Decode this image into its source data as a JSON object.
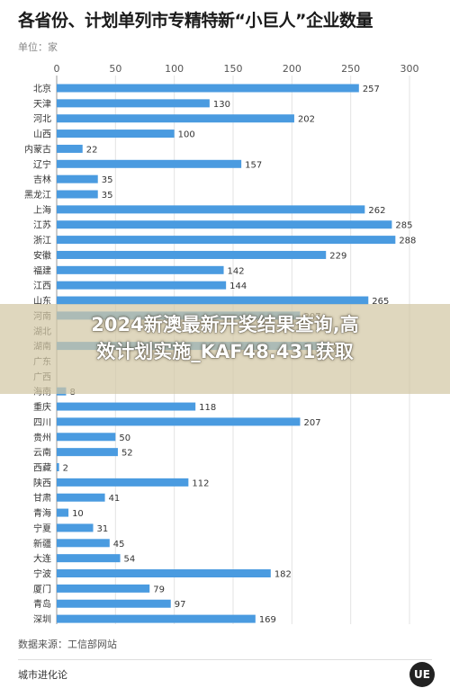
{
  "header": {
    "title": "各省份、计划单列市专精特新“小巨人”企业数量",
    "unit": "单位：家"
  },
  "chart_data": {
    "type": "bar",
    "orientation": "horizontal",
    "title": "各省份、计划单列市专精特新“小巨人”企业数量",
    "unit": "单位：家",
    "xlim": [
      0,
      300
    ],
    "x_ticks": [
      "0",
      "50",
      "100",
      "150",
      "200",
      "250",
      "300"
    ],
    "grid": true,
    "bar_color": "#4a9be0",
    "categories": [
      "北京",
      "天津",
      "河北",
      "山西",
      "内蒙古",
      "辽宁",
      "吉林",
      "黑龙江",
      "上海",
      "江苏",
      "浙江",
      "安徽",
      "福建",
      "江西",
      "山东",
      "河南",
      "湖北",
      "湖南",
      "广东",
      "广西",
      "海南",
      "重庆",
      "四川",
      "贵州",
      "云南",
      "西藏",
      "陕西",
      "甘肃",
      "青海",
      "宁夏",
      "新疆",
      "大连",
      "宁波",
      "厦门",
      "青岛",
      "深圳"
    ],
    "values": [
      257,
      130,
      202,
      100,
      22,
      157,
      35,
      35,
      262,
      285,
      288,
      229,
      142,
      144,
      265,
      207,
      null,
      232,
      null,
      null,
      8,
      118,
      207,
      50,
      52,
      2,
      112,
      41,
      10,
      31,
      45,
      54,
      182,
      79,
      97,
      169
    ],
    "labels": [
      "257",
      "130",
      "202",
      "100",
      "22",
      "157",
      "35",
      "35",
      "262",
      "285",
      "288",
      "229",
      "142",
      "144",
      "265",
      "207",
      "",
      "232",
      "",
      "",
      "8",
      "118",
      "207",
      "50",
      "52",
      "2",
      "112",
      "41",
      "10",
      "31",
      "45",
      "54",
      "182",
      "79",
      "97",
      "169"
    ]
  },
  "overlay": {
    "line1": "2024新澳最新开奖结果查询,高",
    "line2": "效计划实施_KAF48.431获取"
  },
  "footer": {
    "source": "数据来源：工信部网站",
    "brand": "城市进化论",
    "logo_text": "UE"
  }
}
